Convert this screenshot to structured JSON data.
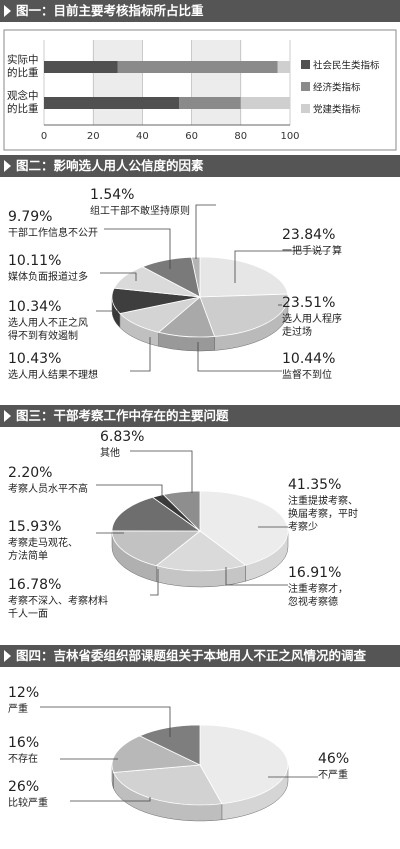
{
  "panels": {
    "p1": {
      "title": "图一：目前主要考核指标所占比重"
    },
    "p2": {
      "title": "图二：影响选人用人公信度的因素"
    },
    "p3": {
      "title": "图三：干部考察工作中存在的主要问题"
    },
    "p4": {
      "title": "图四：吉林省委组织部课题组关于本地用人不正之风情况的调查"
    }
  },
  "colors": {
    "dark": "#505050",
    "mid": "#8a8a8a",
    "light": "#cfcfcf",
    "lighter": "#e4e4e4"
  },
  "chart_data": [
    {
      "type": "bar",
      "orientation": "horizontal",
      "stacked": true,
      "categories": [
        [
          "实际中",
          "的比重"
        ],
        [
          "观念中",
          "的比重"
        ]
      ],
      "series": [
        {
          "name": "社会民生类指标",
          "values": [
            30,
            55
          ]
        },
        {
          "name": "经济类指标",
          "values": [
            65,
            25
          ]
        },
        {
          "name": "党建类指标",
          "values": [
            5,
            20
          ]
        }
      ],
      "xlim": [
        0,
        100
      ],
      "xticks": [
        "0",
        "20",
        "40",
        "60",
        "80",
        "100"
      ],
      "grid": true,
      "legend": "right"
    },
    {
      "type": "pie",
      "slices": [
        {
          "label": "一把手说了算",
          "value": "23.84%"
        },
        {
          "label": "选人用人程序走过场",
          "value": "23.51%"
        },
        {
          "label": "监督不到位",
          "value": "10.44%"
        },
        {
          "label": "选人用人结果不理想",
          "value": "10.43%"
        },
        {
          "label": "选人用人不正之风得不到有效遏制",
          "value": "10.34%"
        },
        {
          "label": "媒体负面报道过多",
          "value": "10.11%"
        },
        {
          "label": "干部工作信息不公开",
          "value": "9.79%"
        },
        {
          "label": "组工干部不敢坚持原则",
          "value": "1.54%"
        }
      ]
    },
    {
      "type": "pie",
      "slices": [
        {
          "label": "注重提拔考察、换届考察，平时考察少",
          "value": "41.35%"
        },
        {
          "label": "注重考察才，忽视考察德",
          "value": "16.91%"
        },
        {
          "label": "考察不深入、考察材料千人一面",
          "value": "16.78%"
        },
        {
          "label": "考察走马观花、方法简单",
          "value": "15.93%"
        },
        {
          "label": "考察人员水平不高",
          "value": "2.20%"
        },
        {
          "label": "其他",
          "value": "6.83%"
        }
      ]
    },
    {
      "type": "pie",
      "slices": [
        {
          "label": "不严重",
          "value": "46%"
        },
        {
          "label": "比较严重",
          "value": "26%"
        },
        {
          "label": "不存在",
          "value": "16%"
        },
        {
          "label": "严重",
          "value": "12%"
        }
      ]
    }
  ]
}
